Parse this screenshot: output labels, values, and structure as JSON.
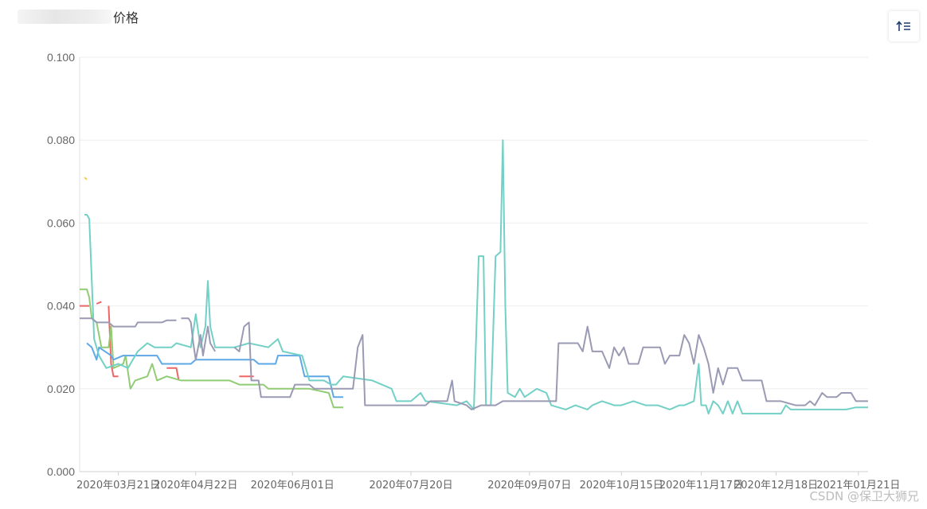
{
  "header": {
    "title_suffix": "价格",
    "sort_icon": "sort-ascending-icon"
  },
  "watermark": "CSDN @保卫大狮兄",
  "chart_data": {
    "type": "line",
    "title": "价格",
    "ylim": [
      0,
      0.1
    ],
    "yticks": [
      "0.000",
      "0.020",
      "0.040",
      "0.060",
      "0.080",
      "0.100"
    ],
    "xlim": [
      "2020-03-05",
      "2021-01-25"
    ],
    "xticks": [
      {
        "date": "2020-03-21",
        "label": "2020年03月21日"
      },
      {
        "date": "2020-04-22",
        "label": "2020年04月22日"
      },
      {
        "date": "2020-06-01",
        "label": "2020年06月01日"
      },
      {
        "date": "2020-07-20",
        "label": "2020年07月20日"
      },
      {
        "date": "2020-09-07",
        "label": "2020年09月07日"
      },
      {
        "date": "2020-10-15",
        "label": "2020年10月15日"
      },
      {
        "date": "2020-11-17",
        "label": "2020年11月17日"
      },
      {
        "date": "2020-12-18",
        "label": "2020年12月18日"
      },
      {
        "date": "2021-01-21",
        "label": "2021年01月21日"
      }
    ],
    "grid": true,
    "legend": "none",
    "series": [
      {
        "color": "#fac858",
        "points": [
          [
            "2020-03-07",
            0.071
          ],
          [
            "2020-03-08",
            0.0705
          ]
        ]
      },
      {
        "color": "#ee6666",
        "points": [
          [
            "2020-03-05",
            0.04
          ],
          [
            "2020-03-09",
            0.04
          ],
          null,
          [
            "2020-03-12",
            0.0405
          ],
          [
            "2020-03-14",
            0.041
          ],
          null,
          [
            "2020-03-17",
            0.04
          ],
          [
            "2020-03-18",
            0.026
          ],
          [
            "2020-03-19",
            0.023
          ],
          [
            "2020-03-21",
            0.023
          ],
          null,
          [
            "2020-04-10",
            0.025
          ],
          [
            "2020-04-14",
            0.025
          ],
          [
            "2020-04-15",
            0.022
          ],
          null,
          [
            "2020-05-10",
            0.023
          ],
          [
            "2020-05-16",
            0.023
          ]
        ]
      },
      {
        "color": "#91cc75",
        "points": [
          [
            "2020-03-05",
            0.044
          ],
          [
            "2020-03-08",
            0.044
          ],
          [
            "2020-03-09",
            0.042
          ],
          [
            "2020-03-10",
            0.037
          ],
          [
            "2020-03-12",
            0.036
          ],
          [
            "2020-03-14",
            0.03
          ],
          [
            "2020-03-17",
            0.03
          ],
          [
            "2020-03-18",
            0.035
          ],
          [
            "2020-03-19",
            0.025
          ],
          [
            "2020-03-23",
            0.026
          ],
          [
            "2020-03-24",
            0.028
          ],
          [
            "2020-03-26",
            0.02
          ],
          [
            "2020-03-28",
            0.022
          ],
          [
            "2020-04-02",
            0.023
          ],
          [
            "2020-04-04",
            0.026
          ],
          [
            "2020-04-06",
            0.022
          ],
          [
            "2020-04-10",
            0.023
          ],
          [
            "2020-04-16",
            0.022
          ],
          [
            "2020-05-06",
            0.022
          ],
          [
            "2020-05-10",
            0.021
          ],
          [
            "2020-05-20",
            0.021
          ],
          [
            "2020-05-22",
            0.02
          ],
          [
            "2020-06-01",
            0.02
          ],
          [
            "2020-06-08",
            0.02
          ],
          [
            "2020-06-16",
            0.019
          ],
          [
            "2020-06-18",
            0.0155
          ],
          [
            "2020-06-22",
            0.0155
          ]
        ]
      },
      {
        "color": "#5ea8e6",
        "points": [
          [
            "2020-03-08",
            0.031
          ],
          [
            "2020-03-10",
            0.03
          ],
          [
            "2020-03-12",
            0.027
          ],
          [
            "2020-03-13",
            0.03
          ],
          [
            "2020-03-18",
            0.028
          ],
          [
            "2020-03-19",
            0.027
          ],
          [
            "2020-03-23",
            0.028
          ],
          [
            "2020-04-06",
            0.028
          ],
          [
            "2020-04-08",
            0.026
          ],
          [
            "2020-04-20",
            0.026
          ],
          [
            "2020-04-22",
            0.027
          ],
          [
            "2020-05-16",
            0.027
          ],
          [
            "2020-05-18",
            0.026
          ],
          [
            "2020-05-25",
            0.026
          ],
          [
            "2020-05-26",
            0.028
          ],
          [
            "2020-06-04",
            0.028
          ],
          [
            "2020-06-06",
            0.023
          ],
          [
            "2020-06-16",
            0.023
          ],
          [
            "2020-06-18",
            0.018
          ],
          [
            "2020-06-22",
            0.018
          ]
        ]
      },
      {
        "color": "#73d0c6",
        "points": [
          [
            "2020-03-07",
            0.062
          ],
          [
            "2020-03-08",
            0.062
          ],
          [
            "2020-03-09",
            0.061
          ],
          [
            "2020-03-11",
            0.032
          ],
          [
            "2020-03-13",
            0.028
          ],
          [
            "2020-03-16",
            0.025
          ],
          [
            "2020-03-21",
            0.026
          ],
          [
            "2020-03-25",
            0.025
          ],
          [
            "2020-03-29",
            0.029
          ],
          [
            "2020-04-02",
            0.031
          ],
          [
            "2020-04-05",
            0.03
          ],
          [
            "2020-04-12",
            0.03
          ],
          [
            "2020-04-14",
            0.031
          ],
          [
            "2020-04-20",
            0.03
          ],
          [
            "2020-04-22",
            0.038
          ],
          [
            "2020-04-24",
            0.03
          ],
          [
            "2020-04-26",
            0.035
          ],
          [
            "2020-04-27",
            0.046
          ],
          [
            "2020-04-28",
            0.035
          ],
          [
            "2020-04-30",
            0.03
          ],
          [
            "2020-05-08",
            0.03
          ],
          [
            "2020-05-14",
            0.031
          ],
          [
            "2020-05-22",
            0.03
          ],
          [
            "2020-05-26",
            0.032
          ],
          [
            "2020-05-28",
            0.029
          ],
          [
            "2020-06-05",
            0.028
          ],
          [
            "2020-06-08",
            0.022
          ],
          [
            "2020-06-14",
            0.022
          ],
          [
            "2020-06-17",
            0.021
          ],
          [
            "2020-06-19",
            0.021
          ],
          [
            "2020-06-22",
            0.023
          ],
          [
            "2020-07-04",
            0.022
          ],
          [
            "2020-07-12",
            0.02
          ],
          [
            "2020-07-14",
            0.017
          ],
          [
            "2020-07-20",
            0.017
          ],
          [
            "2020-07-24",
            0.019
          ],
          [
            "2020-07-26",
            0.017
          ],
          [
            "2020-08-08",
            0.016
          ],
          [
            "2020-08-12",
            0.017
          ],
          [
            "2020-08-15",
            0.015
          ],
          [
            "2020-08-17",
            0.052
          ],
          [
            "2020-08-19",
            0.052
          ],
          [
            "2020-08-20",
            0.016
          ],
          [
            "2020-08-22",
            0.016
          ],
          [
            "2020-08-24",
            0.052
          ],
          [
            "2020-08-26",
            0.053
          ],
          [
            "2020-08-27",
            0.08
          ],
          [
            "2020-08-28",
            0.04
          ],
          [
            "2020-08-29",
            0.019
          ],
          [
            "2020-09-01",
            0.018
          ],
          [
            "2020-09-03",
            0.02
          ],
          [
            "2020-09-05",
            0.018
          ],
          [
            "2020-09-10",
            0.02
          ],
          [
            "2020-09-14",
            0.019
          ],
          [
            "2020-09-16",
            0.016
          ],
          [
            "2020-09-22",
            0.015
          ],
          [
            "2020-09-26",
            0.016
          ],
          [
            "2020-10-01",
            0.015
          ],
          [
            "2020-10-03",
            0.016
          ],
          [
            "2020-10-07",
            0.017
          ],
          [
            "2020-10-12",
            0.016
          ],
          [
            "2020-10-15",
            0.016
          ],
          [
            "2020-10-20",
            0.017
          ],
          [
            "2020-10-25",
            0.016
          ],
          [
            "2020-10-30",
            0.016
          ],
          [
            "2020-11-04",
            0.015
          ],
          [
            "2020-11-08",
            0.016
          ],
          [
            "2020-11-10",
            0.016
          ],
          [
            "2020-11-14",
            0.017
          ],
          [
            "2020-11-16",
            0.026
          ],
          [
            "2020-11-17",
            0.016
          ],
          [
            "2020-11-19",
            0.016
          ],
          [
            "2020-11-20",
            0.014
          ],
          [
            "2020-11-22",
            0.017
          ],
          [
            "2020-11-24",
            0.016
          ],
          [
            "2020-11-26",
            0.014
          ],
          [
            "2020-11-28",
            0.017
          ],
          [
            "2020-11-30",
            0.014
          ],
          [
            "2020-12-02",
            0.017
          ],
          [
            "2020-12-04",
            0.014
          ],
          [
            "2020-12-12",
            0.014
          ],
          [
            "2020-12-14",
            0.014
          ],
          [
            "2020-12-20",
            0.014
          ],
          [
            "2020-12-22",
            0.016
          ],
          [
            "2020-12-24",
            0.015
          ],
          [
            "2021-01-04",
            0.015
          ],
          [
            "2021-01-08",
            0.015
          ],
          [
            "2021-01-16",
            0.015
          ],
          [
            "2021-01-20",
            0.0155
          ],
          [
            "2021-01-25",
            0.0155
          ]
        ]
      },
      {
        "color": "#9a9ab4",
        "points": [
          [
            "2020-03-05",
            0.037
          ],
          [
            "2020-03-10",
            0.037
          ],
          [
            "2020-03-12",
            0.036
          ],
          [
            "2020-03-17",
            0.036
          ],
          [
            "2020-03-19",
            0.035
          ],
          [
            "2020-03-28",
            0.035
          ],
          [
            "2020-03-29",
            0.036
          ],
          [
            "2020-04-08",
            0.036
          ],
          [
            "2020-04-10",
            0.0365
          ],
          [
            "2020-04-14",
            0.0365
          ],
          null,
          [
            "2020-04-16",
            0.037
          ],
          [
            "2020-04-19",
            0.037
          ],
          [
            "2020-04-20",
            0.036
          ],
          [
            "2020-04-21",
            0.031
          ],
          [
            "2020-04-22",
            0.027
          ],
          [
            "2020-04-24",
            0.033
          ],
          [
            "2020-04-25",
            0.028
          ],
          [
            "2020-04-27",
            0.035
          ],
          [
            "2020-04-28",
            0.031
          ],
          [
            "2020-04-30",
            0.029
          ],
          null,
          [
            "2020-05-08",
            0.03
          ],
          [
            "2020-05-10",
            0.029
          ],
          [
            "2020-05-12",
            0.035
          ],
          [
            "2020-05-14",
            0.036
          ],
          [
            "2020-05-15",
            0.022
          ],
          [
            "2020-05-18",
            0.022
          ],
          [
            "2020-05-19",
            0.018
          ],
          [
            "2020-05-31",
            0.018
          ],
          [
            "2020-06-02",
            0.021
          ],
          [
            "2020-06-08",
            0.021
          ],
          [
            "2020-06-10",
            0.02
          ],
          [
            "2020-06-26",
            0.02
          ],
          [
            "2020-06-28",
            0.03
          ],
          [
            "2020-06-30",
            0.033
          ],
          [
            "2020-07-01",
            0.016
          ],
          [
            "2020-07-10",
            0.016
          ],
          [
            "2020-07-22",
            0.016
          ],
          [
            "2020-07-26",
            0.016
          ],
          [
            "2020-07-28",
            0.017
          ],
          [
            "2020-08-04",
            0.017
          ],
          [
            "2020-08-06",
            0.022
          ],
          [
            "2020-08-07",
            0.017
          ],
          [
            "2020-08-12",
            0.016
          ],
          [
            "2020-08-14",
            0.015
          ],
          [
            "2020-08-18",
            0.016
          ],
          [
            "2020-08-24",
            0.016
          ],
          [
            "2020-08-27",
            0.017
          ],
          [
            "2020-09-10",
            0.017
          ],
          [
            "2020-09-18",
            0.017
          ],
          [
            "2020-09-19",
            0.031
          ],
          [
            "2020-09-27",
            0.031
          ],
          [
            "2020-09-29",
            0.029
          ],
          [
            "2020-10-01",
            0.035
          ],
          [
            "2020-10-03",
            0.029
          ],
          [
            "2020-10-07",
            0.029
          ],
          [
            "2020-10-10",
            0.025
          ],
          [
            "2020-10-12",
            0.03
          ],
          [
            "2020-10-14",
            0.028
          ],
          [
            "2020-10-16",
            0.03
          ],
          [
            "2020-10-18",
            0.026
          ],
          [
            "2020-10-22",
            0.026
          ],
          [
            "2020-10-24",
            0.03
          ],
          [
            "2020-10-31",
            0.03
          ],
          [
            "2020-11-02",
            0.026
          ],
          [
            "2020-11-04",
            0.028
          ],
          [
            "2020-11-08",
            0.028
          ],
          [
            "2020-11-10",
            0.033
          ],
          [
            "2020-11-12",
            0.031
          ],
          [
            "2020-11-14",
            0.026
          ],
          [
            "2020-11-16",
            0.033
          ],
          [
            "2020-11-18",
            0.03
          ],
          [
            "2020-11-20",
            0.026
          ],
          [
            "2020-11-22",
            0.019
          ],
          [
            "2020-11-24",
            0.025
          ],
          [
            "2020-11-26",
            0.021
          ],
          [
            "2020-11-28",
            0.025
          ],
          [
            "2020-12-02",
            0.025
          ],
          [
            "2020-12-04",
            0.022
          ],
          [
            "2020-12-12",
            0.022
          ],
          [
            "2020-12-14",
            0.017
          ],
          [
            "2020-12-20",
            0.017
          ],
          [
            "2020-12-26",
            0.016
          ],
          [
            "2020-12-30",
            0.016
          ],
          [
            "2021-01-01",
            0.017
          ],
          [
            "2021-01-03",
            0.016
          ],
          [
            "2021-01-06",
            0.019
          ],
          [
            "2021-01-08",
            0.018
          ],
          [
            "2021-01-12",
            0.018
          ],
          [
            "2021-01-14",
            0.019
          ],
          [
            "2021-01-18",
            0.019
          ],
          [
            "2021-01-20",
            0.017
          ],
          [
            "2021-01-25",
            0.017
          ]
        ]
      }
    ]
  }
}
